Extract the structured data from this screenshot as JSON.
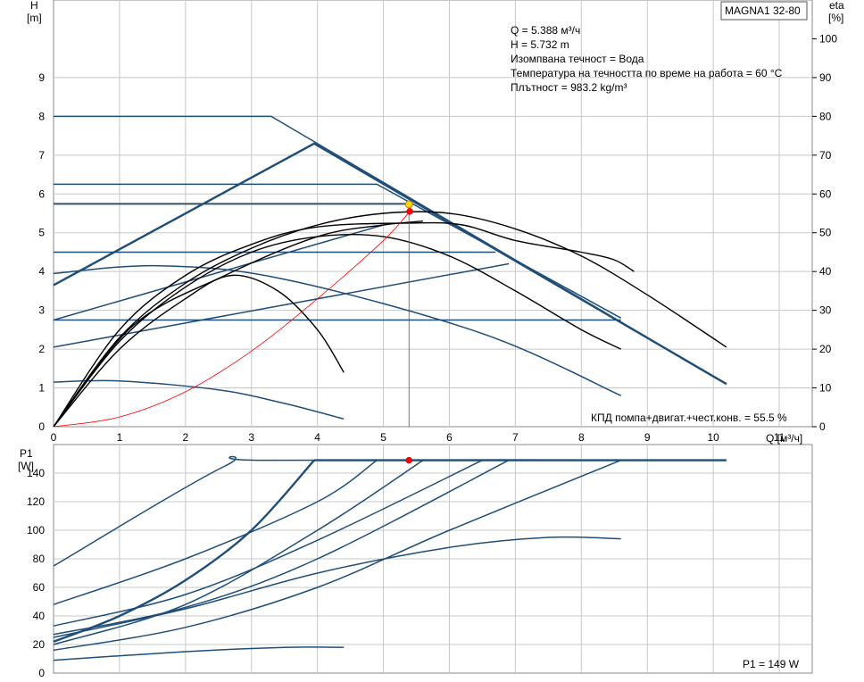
{
  "model_label": "MAGNA1 32-80",
  "info_lines": [
    "Q = 5.388 м³/ч",
    "H = 5.732 m",
    "Изомпвана течност = Вода",
    "Температура на течността по време на работа = 60 °C",
    "Плътност = 983.2 kg/m³"
  ],
  "efficiency_note": "КПД помпа+двигат.+чест.конв. = 55.5 %",
  "power_note": "P1 = 149 W",
  "colors": {
    "curve": "#1f4e79",
    "system": "#000000",
    "efficiency": "#ff0000",
    "grid": "#c8c8c8"
  },
  "chart_data": [
    {
      "type": "line",
      "xlabel": "Q [м³/ч]",
      "ylabel_lines": [
        "H",
        "[m]"
      ],
      "y2label_lines": [
        "eta",
        "[%]"
      ],
      "xlim": [
        0,
        11.5
      ],
      "ylim": [
        0,
        11
      ],
      "y2lim": [
        0,
        110
      ],
      "x_ticks": [
        "0",
        "1",
        "2",
        "3",
        "4",
        "5",
        "6",
        "7",
        "8",
        "9",
        "10",
        "11"
      ],
      "y_ticks": [
        "0",
        "1",
        "2",
        "3",
        "4",
        "5",
        "6",
        "7",
        "8",
        "9"
      ],
      "y2_ticks": [
        "0",
        "10",
        "20",
        "30",
        "40",
        "50",
        "60",
        "70",
        "80",
        "90",
        "100"
      ],
      "grid": true,
      "duty_point": {
        "q": 5.388,
        "h": 5.732
      },
      "efficiency_point": {
        "q": 5.4,
        "h": 5.55
      },
      "series": [
        {
          "style": "pump",
          "points": [
            [
              0,
              8
            ],
            [
              3.3,
              8
            ],
            [
              10.2,
              1.1
            ]
          ]
        },
        {
          "style": "pump-bold",
          "points": [
            [
              0,
              3.65
            ],
            [
              3.95,
              7.3
            ],
            [
              10.2,
              1.1
            ]
          ]
        },
        {
          "style": "pump",
          "points": [
            [
              0,
              6.25
            ],
            [
              4.9,
              6.25
            ],
            [
              8.6,
              2.8
            ]
          ]
        },
        {
          "style": "pump",
          "points": [
            [
              0,
              5.75
            ],
            [
              5.4,
              5.75
            ]
          ]
        },
        {
          "style": "pump",
          "points": [
            [
              0,
              4.5
            ],
            [
              6.7,
              4.5
            ]
          ]
        },
        {
          "style": "pump",
          "points": [
            [
              0,
              2.75
            ],
            [
              8.6,
              2.75
            ]
          ]
        },
        {
          "style": "pump",
          "points": [
            [
              0,
              2.75
            ],
            [
              5.0,
              5.2
            ]
          ]
        },
        {
          "style": "pump",
          "points": [
            [
              0,
              2.05
            ],
            [
              6.9,
              4.2
            ]
          ]
        },
        {
          "style": "pump",
          "points": [
            [
              0,
              3.95
            ],
            [
              1.6,
              4.15
            ],
            [
              3.5,
              3.8
            ],
            [
              6.5,
              2.4
            ],
            [
              8.6,
              0.8
            ]
          ]
        },
        {
          "style": "pump",
          "points": [
            [
              0,
              1.15
            ],
            [
              1.0,
              1.18
            ],
            [
              2.5,
              0.95
            ],
            [
              3.5,
              0.6
            ],
            [
              4.4,
              0.2
            ]
          ]
        },
        {
          "style": "system",
          "points": [
            [
              0,
              0
            ],
            [
              1.0,
              2.3
            ],
            [
              2.0,
              3.7
            ],
            [
              3.0,
              4.6
            ],
            [
              4.0,
              5.2
            ],
            [
              5.0,
              5.5
            ],
            [
              6.0,
              5.5
            ],
            [
              7.0,
              5.1
            ],
            [
              8.0,
              4.4
            ],
            [
              9.0,
              3.4
            ],
            [
              10.2,
              2.05
            ]
          ]
        },
        {
          "style": "system",
          "points": [
            [
              0,
              0
            ],
            [
              1.0,
              2.5
            ],
            [
              2.0,
              3.9
            ],
            [
              3.0,
              4.7
            ],
            [
              4.0,
              5.15
            ],
            [
              5.4,
              5.25
            ],
            [
              6.2,
              5.2
            ],
            [
              7.0,
              4.8
            ],
            [
              8.0,
              4.5
            ],
            [
              8.5,
              4.3
            ],
            [
              8.8,
              4.0
            ]
          ]
        },
        {
          "style": "system",
          "points": [
            [
              0,
              0
            ],
            [
              1.0,
              2.2
            ],
            [
              2.0,
              3.6
            ],
            [
              3.0,
              4.5
            ],
            [
              4.0,
              4.9
            ],
            [
              5.0,
              4.9
            ],
            [
              6.0,
              4.4
            ],
            [
              7.0,
              3.5
            ],
            [
              8.0,
              2.5
            ],
            [
              8.6,
              2.0
            ]
          ]
        },
        {
          "style": "system",
          "points": [
            [
              0,
              0
            ],
            [
              1.0,
              2.0
            ],
            [
              2.0,
              3.3
            ],
            [
              2.7,
              3.9
            ],
            [
              3.4,
              3.5
            ],
            [
              4.0,
              2.5
            ],
            [
              4.4,
              1.4
            ]
          ]
        },
        {
          "style": "system",
          "points": [
            [
              0,
              0
            ],
            [
              1.2,
              2.6
            ],
            [
              2.6,
              3.9
            ],
            [
              4.0,
              4.9
            ],
            [
              5.0,
              5.2
            ],
            [
              5.6,
              5.3
            ]
          ]
        },
        {
          "style": "efficiency",
          "points": [
            [
              0,
              0
            ],
            [
              1.0,
              0.25
            ],
            [
              2.0,
              0.9
            ],
            [
              3.0,
              1.95
            ],
            [
              4.0,
              3.3
            ],
            [
              5.0,
              4.8
            ],
            [
              5.4,
              5.55
            ]
          ]
        }
      ]
    },
    {
      "type": "line",
      "xlabel": "",
      "ylabel_lines": [
        "P1",
        "[W]"
      ],
      "xlim": [
        0,
        11.5
      ],
      "ylim": [
        0,
        160
      ],
      "y_ticks": [
        "0",
        "20",
        "40",
        "60",
        "80",
        "100",
        "120",
        "140"
      ],
      "grid": true,
      "power_point": {
        "q": 5.388,
        "p": 149
      },
      "series": [
        {
          "style": "pump",
          "points": [
            [
              0,
              75
            ],
            [
              2.6,
              145
            ],
            [
              3.3,
              149
            ],
            [
              10.2,
              149
            ]
          ]
        },
        {
          "style": "pump-bold",
          "points": [
            [
              0,
              22
            ],
            [
              1.0,
              40
            ],
            [
              2.0,
              65
            ],
            [
              3.0,
              100
            ],
            [
              3.95,
              149
            ]
          ]
        },
        {
          "style": "pump",
          "points": [
            [
              0,
              48
            ],
            [
              2.0,
              80
            ],
            [
              4.0,
              120
            ],
            [
              4.9,
              149
            ]
          ]
        },
        {
          "style": "pump",
          "points": [
            [
              0,
              20
            ],
            [
              2.0,
              48
            ],
            [
              4.0,
              100
            ],
            [
              5.6,
              149
            ]
          ]
        },
        {
          "style": "pump",
          "points": [
            [
              0,
              33
            ],
            [
              2.0,
              55
            ],
            [
              4.0,
              93
            ],
            [
              6.5,
              149
            ]
          ]
        },
        {
          "style": "pump",
          "points": [
            [
              0,
              27
            ],
            [
              2.0,
              46
            ],
            [
              4.0,
              80
            ],
            [
              6.9,
              149
            ]
          ]
        },
        {
          "style": "pump",
          "points": [
            [
              0,
              16
            ],
            [
              2.0,
              32
            ],
            [
              4.0,
              60
            ],
            [
              6.0,
              100
            ],
            [
              8.6,
              149
            ]
          ]
        },
        {
          "style": "pump",
          "points": [
            [
              0,
              25
            ],
            [
              2.0,
              45
            ],
            [
              4.0,
              70
            ],
            [
              6.0,
              88
            ],
            [
              7.5,
              95
            ],
            [
              8.6,
              94
            ]
          ]
        },
        {
          "style": "pump",
          "points": [
            [
              0,
              9
            ],
            [
              2.0,
              15
            ],
            [
              3.5,
              18
            ],
            [
              4.4,
              18
            ]
          ]
        },
        {
          "style": "bold-flat",
          "points": [
            [
              3.95,
              149
            ],
            [
              10.2,
              149
            ]
          ]
        }
      ]
    }
  ]
}
